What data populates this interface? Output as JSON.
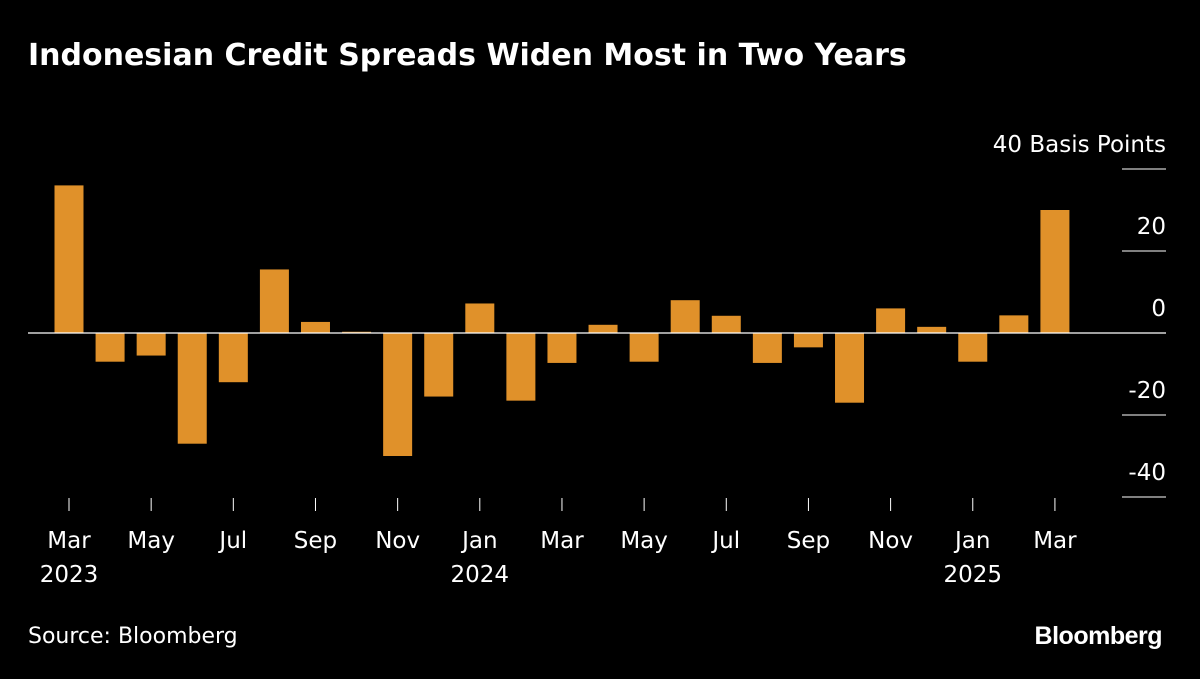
{
  "title": "Indonesian Credit Spreads Widen Most in Two Years",
  "source": "Source: Bloomberg",
  "logo": "Bloomberg",
  "colors": {
    "background": "#000000",
    "bar": "#e0912a",
    "text": "#ffffff"
  },
  "chart_data": {
    "type": "bar",
    "ylabel": "40 Basis Points",
    "unit": "Basis Points",
    "ylim": [
      -40,
      40
    ],
    "yticks": [
      40,
      20,
      0,
      -20,
      -40
    ],
    "ytick_labels": [
      "40",
      "20",
      "0",
      "-20",
      "-40"
    ],
    "categories": [
      "2023-03",
      "2023-04",
      "2023-05",
      "2023-06",
      "2023-07",
      "2023-08",
      "2023-09",
      "2023-10",
      "2023-11",
      "2023-12",
      "2024-01",
      "2024-02",
      "2024-03",
      "2024-04",
      "2024-05",
      "2024-06",
      "2024-07",
      "2024-08",
      "2024-09",
      "2024-10",
      "2024-11",
      "2024-12",
      "2025-01",
      "2025-02",
      "2025-03"
    ],
    "values": [
      36,
      -7,
      -5.5,
      -27,
      -12,
      15.5,
      2.7,
      0.3,
      -30,
      -15.5,
      7.2,
      -16.5,
      -7.3,
      2,
      -7,
      8,
      4.2,
      -7.3,
      -3.5,
      -17,
      6,
      1.5,
      -7,
      4.3,
      30
    ],
    "x_tick_labels": [
      {
        "index": 0,
        "month": "Mar",
        "year": "2023"
      },
      {
        "index": 2,
        "month": "May",
        "year": ""
      },
      {
        "index": 4,
        "month": "Jul",
        "year": ""
      },
      {
        "index": 6,
        "month": "Sep",
        "year": ""
      },
      {
        "index": 8,
        "month": "Nov",
        "year": ""
      },
      {
        "index": 10,
        "month": "Jan",
        "year": "2024"
      },
      {
        "index": 12,
        "month": "Mar",
        "year": ""
      },
      {
        "index": 14,
        "month": "May",
        "year": ""
      },
      {
        "index": 16,
        "month": "Jul",
        "year": ""
      },
      {
        "index": 18,
        "month": "Sep",
        "year": ""
      },
      {
        "index": 20,
        "month": "Nov",
        "year": ""
      },
      {
        "index": 22,
        "month": "Jan",
        "year": "2025"
      },
      {
        "index": 24,
        "month": "Mar",
        "year": ""
      }
    ],
    "grid": false
  }
}
